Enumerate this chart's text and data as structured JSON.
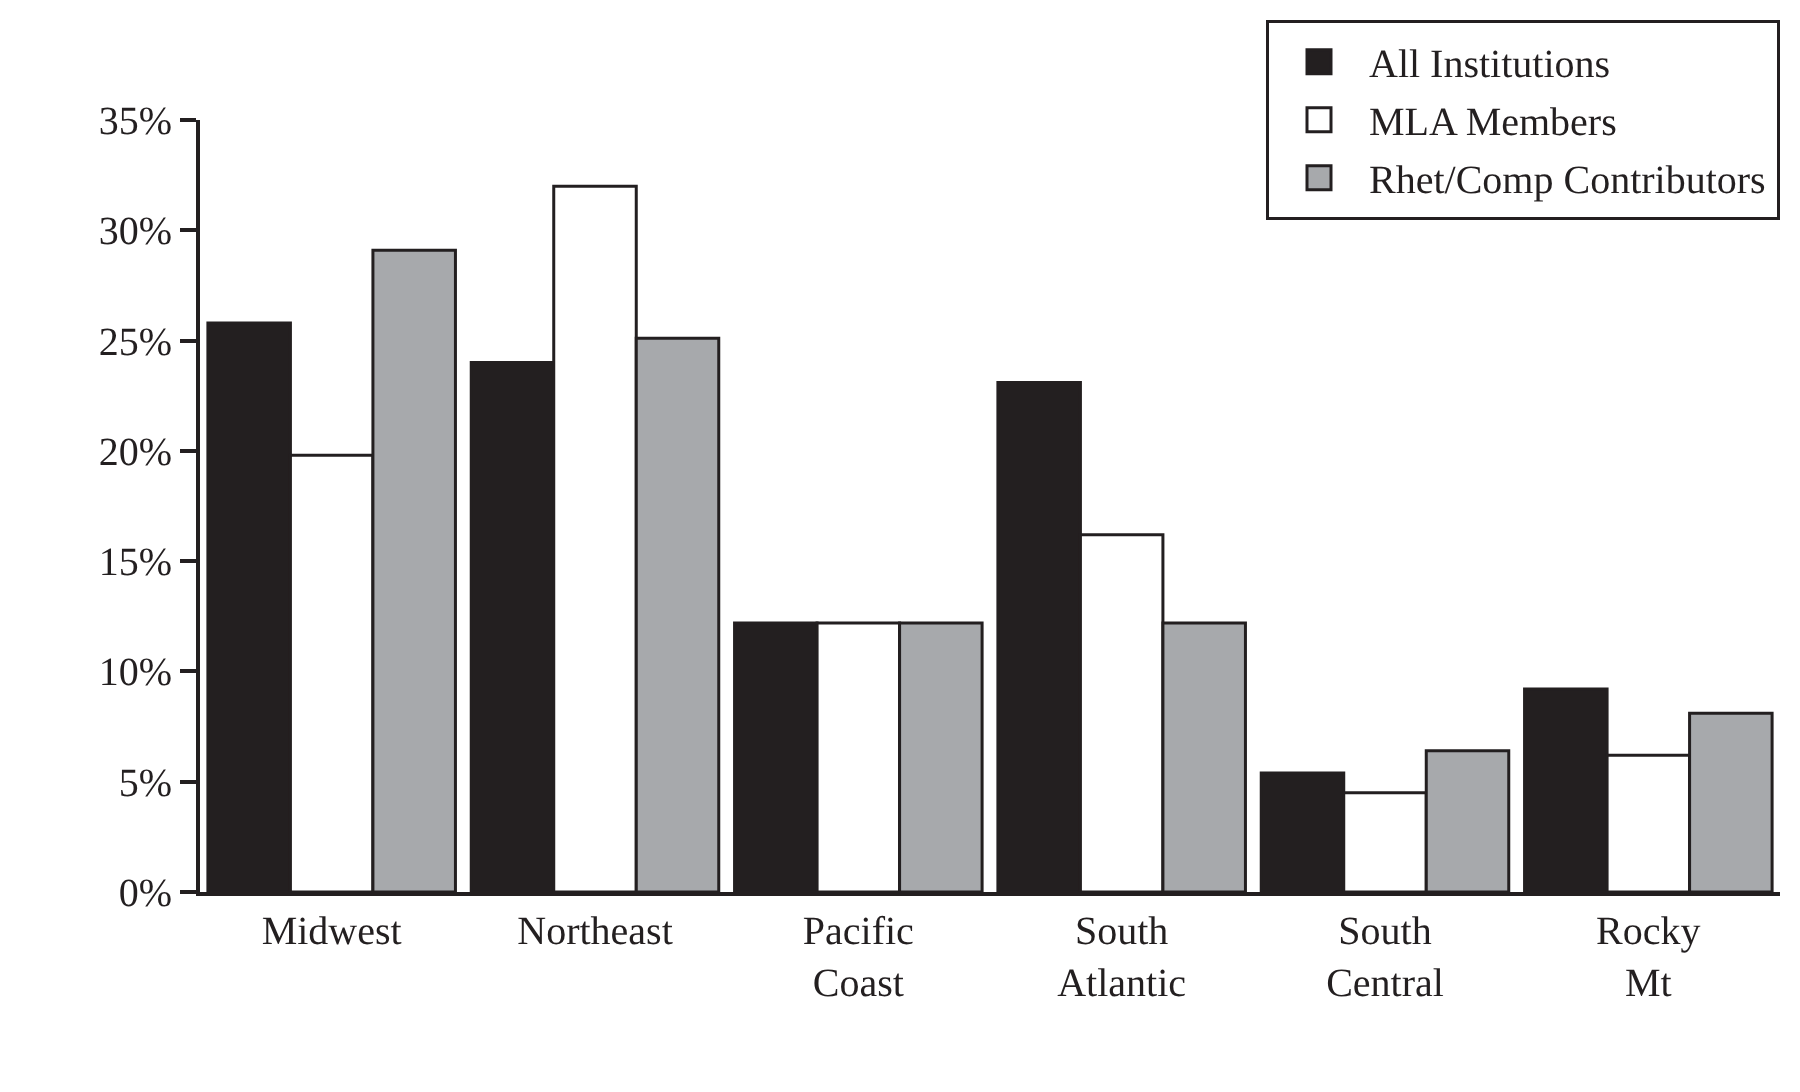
{
  "chart_data": {
    "type": "bar",
    "categories": [
      "Midwest",
      "Northeast",
      "Pacific Coast",
      "South Atlantic",
      "South Central",
      "Rocky Mt"
    ],
    "series": [
      {
        "name": "All Institutions",
        "color": "#231f20",
        "values": [
          25.8,
          24.0,
          12.2,
          23.1,
          5.4,
          9.2
        ]
      },
      {
        "name": "MLA Members",
        "color": "#ffffff",
        "values": [
          19.8,
          32.0,
          12.2,
          16.2,
          4.5,
          6.2
        ]
      },
      {
        "name": "Rhet/Comp Contributors",
        "color": "#a7a9ac",
        "values": [
          29.1,
          25.1,
          12.2,
          12.2,
          6.4,
          8.1
        ]
      }
    ],
    "ylim": [
      0,
      35
    ],
    "yticks": [
      {
        "value": 0,
        "label": "0%"
      },
      {
        "value": 5,
        "label": "5%"
      },
      {
        "value": 10,
        "label": "10%"
      },
      {
        "value": 15,
        "label": "15%"
      },
      {
        "value": 20,
        "label": "20%"
      },
      {
        "value": 25,
        "label": "25%"
      },
      {
        "value": 30,
        "label": "30%"
      },
      {
        "value": 35,
        "label": "35%"
      }
    ],
    "grid": false,
    "legend": "top right"
  }
}
